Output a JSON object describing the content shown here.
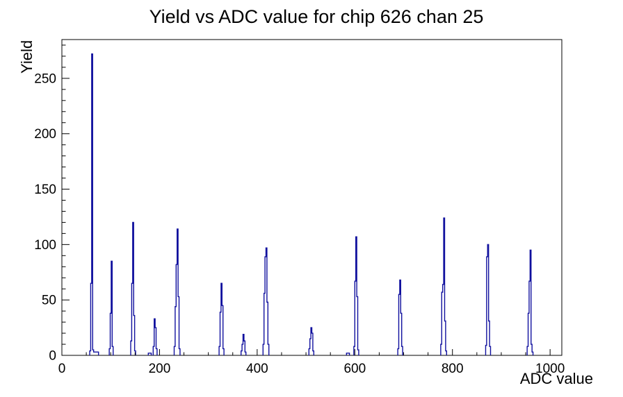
{
  "chart_data": {
    "type": "bar",
    "title": "Yield vs ADC value for chip 626 chan 25",
    "xlabel": "ADC value",
    "ylabel": "Yield",
    "xlim": [
      0,
      1024
    ],
    "ylim": [
      0,
      285
    ],
    "grid": false,
    "legend": false,
    "style": "stepped-histogram-outline",
    "colors": {
      "line": "#10109e",
      "frame": "#000000",
      "background": "#ffffff"
    },
    "axes": {
      "x": {
        "title": "ADC value",
        "tick_values": [
          0,
          200,
          400,
          600,
          800,
          1000
        ],
        "tick_labels": [
          "0",
          "200",
          "400",
          "600",
          "800",
          "1000"
        ],
        "minor_step": 50,
        "major_step": 200
      },
      "y": {
        "title": "Yield",
        "tick_values": [
          0,
          50,
          100,
          150,
          200,
          250
        ],
        "tick_labels": [
          "0",
          "50",
          "100",
          "150",
          "200",
          "250"
        ],
        "minor_step": 10,
        "major_step": 50
      }
    },
    "clusters": [
      {
        "start": 57,
        "bin_width": 2,
        "heights": [
          4,
          65,
          272,
          5,
          3,
          3,
          3,
          3,
          3
        ]
      },
      {
        "start": 97,
        "bin_width": 2,
        "heights": [
          6,
          38,
          85,
          8
        ]
      },
      {
        "start": 141,
        "bin_width": 2,
        "heights": [
          13,
          65,
          120,
          36,
          4
        ]
      },
      {
        "start": 177,
        "bin_width": 2,
        "heights": [
          2,
          2,
          2
        ]
      },
      {
        "start": 187,
        "bin_width": 2,
        "heights": [
          8,
          33,
          25,
          6
        ]
      },
      {
        "start": 230,
        "bin_width": 2,
        "heights": [
          8,
          44,
          82,
          114,
          53,
          6
        ]
      },
      {
        "start": 322,
        "bin_width": 2,
        "heights": [
          8,
          39,
          65,
          45,
          6
        ]
      },
      {
        "start": 367,
        "bin_width": 2,
        "heights": [
          4,
          10,
          19,
          13,
          3
        ]
      },
      {
        "start": 412,
        "bin_width": 2,
        "heights": [
          10,
          56,
          89,
          97,
          48,
          10
        ]
      },
      {
        "start": 506,
        "bin_width": 2,
        "heights": [
          6,
          15,
          25,
          20,
          4
        ]
      },
      {
        "start": 583,
        "bin_width": 2,
        "heights": [
          2,
          2,
          2
        ]
      },
      {
        "start": 598,
        "bin_width": 2,
        "heights": [
          8,
          67,
          107,
          53,
          5
        ]
      },
      {
        "start": 688,
        "bin_width": 2,
        "heights": [
          6,
          55,
          68,
          38,
          8
        ]
      },
      {
        "start": 776,
        "bin_width": 2,
        "heights": [
          10,
          57,
          64,
          124,
          31,
          4
        ]
      },
      {
        "start": 868,
        "bin_width": 2,
        "heights": [
          9,
          89,
          100,
          31,
          8
        ]
      },
      {
        "start": 953,
        "bin_width": 2,
        "heights": [
          8,
          38,
          67,
          95,
          10,
          3
        ]
      }
    ],
    "peaks_summary": [
      {
        "adc": 61,
        "yield": 272
      },
      {
        "adc": 101,
        "yield": 85
      },
      {
        "adc": 145,
        "yield": 120
      },
      {
        "adc": 189,
        "yield": 33
      },
      {
        "adc": 236,
        "yield": 114
      },
      {
        "adc": 326,
        "yield": 65
      },
      {
        "adc": 371,
        "yield": 19
      },
      {
        "adc": 418,
        "yield": 97
      },
      {
        "adc": 510,
        "yield": 25
      },
      {
        "adc": 602,
        "yield": 107
      },
      {
        "adc": 692,
        "yield": 68
      },
      {
        "adc": 782,
        "yield": 124
      },
      {
        "adc": 872,
        "yield": 100
      },
      {
        "adc": 959,
        "yield": 95
      }
    ]
  }
}
